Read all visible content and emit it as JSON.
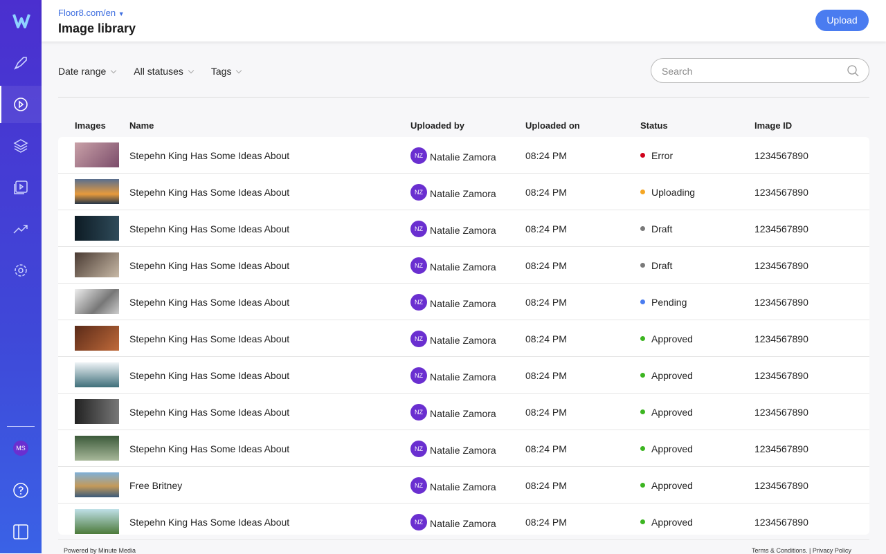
{
  "header": {
    "site": "Floor8.com/en",
    "title": "Image library",
    "upload": "Upload"
  },
  "filters": [
    "Date range",
    "All statuses",
    "Tags"
  ],
  "search": {
    "placeholder": "Search"
  },
  "sidebar": {
    "avatar": "MS"
  },
  "table": {
    "columns": [
      "Images",
      "Name",
      "Uploaded by",
      "Uploaded on",
      "Status",
      "Image ID"
    ],
    "rows": [
      {
        "name": "Stepehn King Has Some Ideas About",
        "initials": "NZ",
        "uploader": "Natalie Zamora",
        "uploaded_on": "08:24 PM",
        "status": "Error",
        "status_color": "#d0021b",
        "image_id": "1234567890"
      },
      {
        "name": "Stepehn King Has Some Ideas About",
        "initials": "NZ",
        "uploader": "Natalie Zamora",
        "uploaded_on": "08:24 PM",
        "status": "Uploading",
        "status_color": "#f5a623",
        "image_id": "1234567890"
      },
      {
        "name": "Stepehn King Has Some Ideas About",
        "initials": "NZ",
        "uploader": "Natalie Zamora",
        "uploaded_on": "08:24 PM",
        "status": "Draft",
        "status_color": "#7a7a7a",
        "image_id": "1234567890"
      },
      {
        "name": "Stepehn King Has Some Ideas About",
        "initials": "NZ",
        "uploader": "Natalie Zamora",
        "uploaded_on": "08:24 PM",
        "status": "Draft",
        "status_color": "#7a7a7a",
        "image_id": "1234567890"
      },
      {
        "name": "Stepehn King Has Some Ideas About",
        "initials": "NZ",
        "uploader": "Natalie Zamora",
        "uploaded_on": "08:24 PM",
        "status": "Pending",
        "status_color": "#4a7cf0",
        "image_id": "1234567890"
      },
      {
        "name": "Stepehn King Has Some Ideas About",
        "initials": "NZ",
        "uploader": "Natalie Zamora",
        "uploaded_on": "08:24 PM",
        "status": "Approved",
        "status_color": "#3cb521",
        "image_id": "1234567890"
      },
      {
        "name": "Stepehn King Has Some Ideas About",
        "initials": "NZ",
        "uploader": "Natalie Zamora",
        "uploaded_on": "08:24 PM",
        "status": "Approved",
        "status_color": "#3cb521",
        "image_id": "1234567890"
      },
      {
        "name": "Stepehn King Has Some Ideas About",
        "initials": "NZ",
        "uploader": "Natalie Zamora",
        "uploaded_on": "08:24 PM",
        "status": "Approved",
        "status_color": "#3cb521",
        "image_id": "1234567890"
      },
      {
        "name": "Stepehn King Has Some Ideas About",
        "initials": "NZ",
        "uploader": "Natalie Zamora",
        "uploaded_on": "08:24 PM",
        "status": "Approved",
        "status_color": "#3cb521",
        "image_id": "1234567890"
      },
      {
        "name": "Free Britney",
        "initials": "NZ",
        "uploader": "Natalie Zamora",
        "uploaded_on": "08:24 PM",
        "status": "Approved",
        "status_color": "#3cb521",
        "image_id": "1234567890"
      },
      {
        "name": "Stepehn King Has Some Ideas About",
        "initials": "NZ",
        "uploader": "Natalie Zamora",
        "uploaded_on": "08:24 PM",
        "status": "Approved",
        "status_color": "#3cb521",
        "image_id": "1234567890"
      }
    ]
  },
  "footer": {
    "powered": "Powered by Minute Media",
    "terms": "Terms & Conditions. |",
    "privacy": "Privacy Policy"
  }
}
